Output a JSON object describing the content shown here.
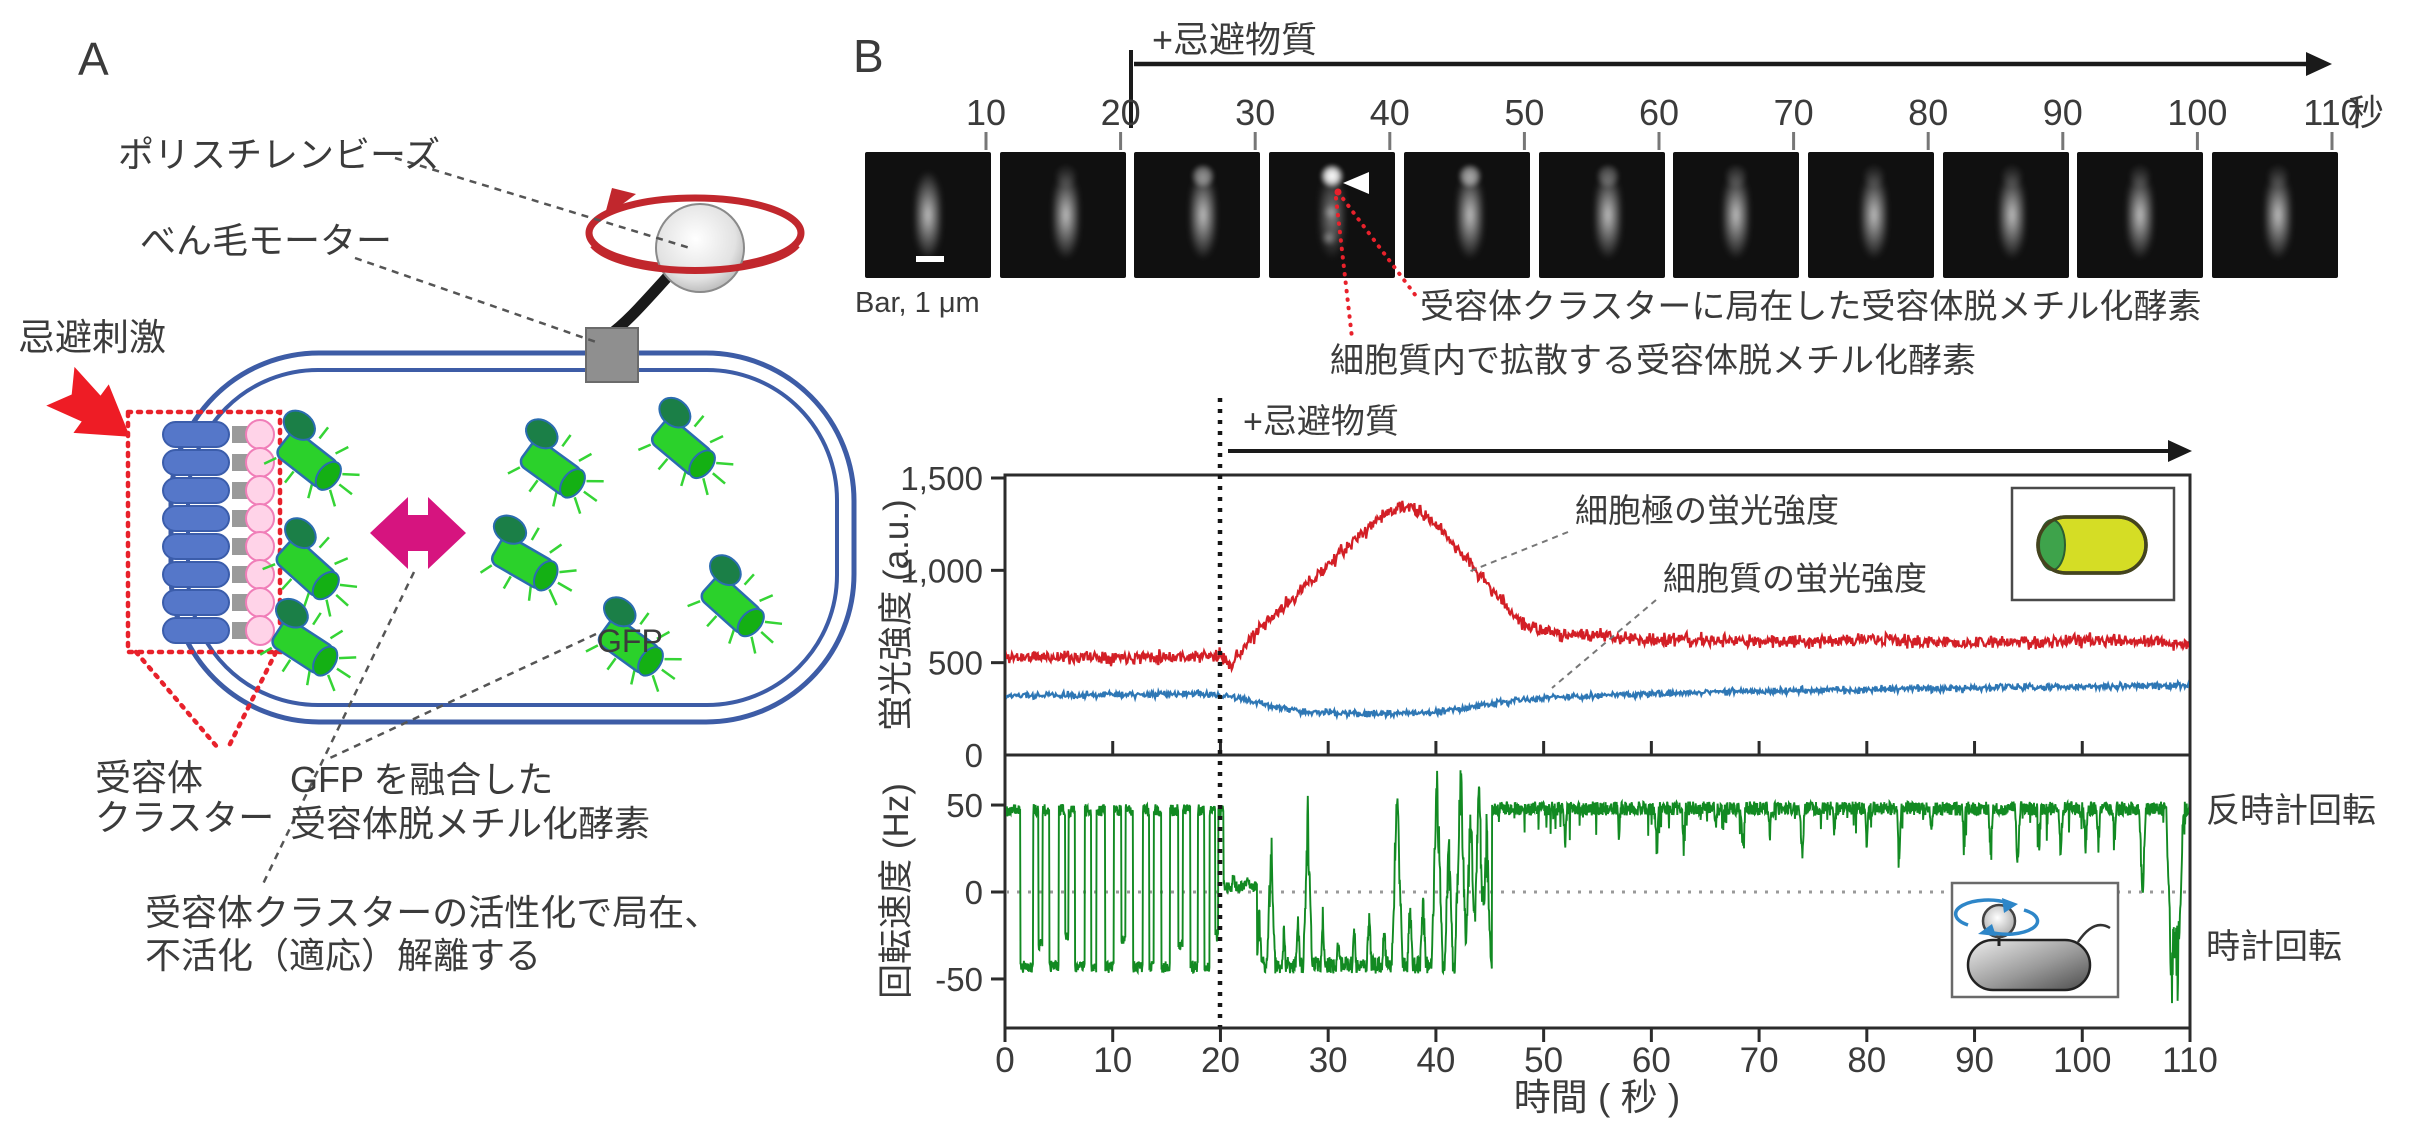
{
  "figure": {
    "panel_a_label": "A",
    "panel_b_label": "B"
  },
  "panel_a": {
    "bead_label": "ポリスチレンビーズ",
    "motor_label": "べん毛モーター",
    "stimulus_label": "忌避刺激",
    "receptor_cluster_label_line1": "受容体",
    "receptor_cluster_label_line2": "クラスター",
    "gfp_label": "GFP",
    "gfp_fusion_label_line1": "GFP を融合した",
    "gfp_fusion_label_line2": "受容体脱メチル化酵素",
    "caption_line1": "受容体クラスターの活性化で局在、",
    "caption_line2": "不活化（適応）解離する",
    "colors": {
      "membrane": "#3D5CA6",
      "receptor_blue": "#5577C9",
      "linker_gray": "#9a9a9a",
      "adaptor_pink": "#FFD3E8",
      "enzyme_body_green": "#2BD12B",
      "enzyme_head_green": "#1B7F47",
      "magenta_arrow": "#D6147F",
      "stimulus_red": "#EE1C25",
      "rotation_red": "#C1272D"
    }
  },
  "panel_b": {
    "strip": {
      "stimulus_label": "+忌避物質",
      "time_tick_labels": [
        "10",
        "20",
        "30",
        "40",
        "50",
        "60",
        "70",
        "80",
        "90",
        "100",
        "110"
      ],
      "time_unit": "秒",
      "scalebar_label": "Bar, 1 μm",
      "annotation_localized": "受容体クラスターに局在した受容体脱メチル化酵素",
      "annotation_diffuse": "細胞質内で拡散する受容体脱メチル化酵素",
      "frames": [
        {
          "t": 10,
          "pole_spot": 0,
          "scalebar": true
        },
        {
          "t": 20,
          "pole_spot": 0.1
        },
        {
          "t": 30,
          "pole_spot": 0.5
        },
        {
          "t": 40,
          "pole_spot": 1.0,
          "arrowhead": true,
          "diffuse_spots": true
        },
        {
          "t": 50,
          "pole_spot": 0.6
        },
        {
          "t": 60,
          "pole_spot": 0.3
        },
        {
          "t": 70,
          "pole_spot": 0.15
        },
        {
          "t": 80,
          "pole_spot": 0.1
        },
        {
          "t": 90,
          "pole_spot": 0.1
        },
        {
          "t": 100,
          "pole_spot": 0.1
        },
        {
          "t": 110,
          "pole_spot": 0.1
        }
      ]
    }
  },
  "chart_data": [
    {
      "type": "line",
      "title": "",
      "ylabel": "蛍光強度 (a.u.)",
      "xlabel": "",
      "xlim": [
        0,
        110
      ],
      "ylim": [
        0,
        1650
      ],
      "yticks": [
        0,
        500,
        1000,
        1500
      ],
      "ytick_labels": [
        "0",
        "500",
        "1,000",
        "1,500"
      ],
      "grid": false,
      "legend_position": "in-plot labels",
      "annotations": {
        "stimulus_label": "+忌避物質",
        "stimulus_start_s": 20,
        "pole_series_label": "細胞極の蛍光強度",
        "cyto_series_label": "細胞質の蛍光強度"
      },
      "series": [
        {
          "name": "細胞極の蛍光強度",
          "color": "#D31F26",
          "noise": 33,
          "keyframes": [
            [
              0,
              530
            ],
            [
              20,
              535
            ],
            [
              21,
              495
            ],
            [
              23,
              640
            ],
            [
              26,
              810
            ],
            [
              30,
              1030
            ],
            [
              33,
              1190
            ],
            [
              35,
              1300
            ],
            [
              37,
              1345
            ],
            [
              38,
              1330
            ],
            [
              40,
              1250
            ],
            [
              42,
              1120
            ],
            [
              44,
              980
            ],
            [
              46,
              840
            ],
            [
              48,
              715
            ],
            [
              50,
              665
            ],
            [
              55,
              645
            ],
            [
              60,
              625
            ],
            [
              70,
              615
            ],
            [
              80,
              625
            ],
            [
              90,
              605
            ],
            [
              100,
              620
            ],
            [
              110,
              605
            ]
          ]
        },
        {
          "name": "細胞質の蛍光強度",
          "color": "#2E77B5",
          "noise": 16,
          "keyframes": [
            [
              0,
              320
            ],
            [
              18,
              332
            ],
            [
              22,
              305
            ],
            [
              25,
              258
            ],
            [
              28,
              235
            ],
            [
              32,
              224
            ],
            [
              36,
              222
            ],
            [
              40,
              232
            ],
            [
              43,
              258
            ],
            [
              46,
              288
            ],
            [
              50,
              308
            ],
            [
              55,
              322
            ],
            [
              60,
              332
            ],
            [
              70,
              346
            ],
            [
              80,
              354
            ],
            [
              90,
              362
            ],
            [
              100,
              370
            ],
            [
              110,
              376
            ]
          ]
        }
      ]
    },
    {
      "type": "line",
      "title": "",
      "ylabel": "回転速度 (Hz)",
      "xlabel": "時間 ( 秒 )",
      "xlim": [
        0,
        110
      ],
      "ylim": [
        -78,
        84
      ],
      "yticks": [
        -50,
        0,
        50
      ],
      "ytick_labels": [
        "-50",
        "0",
        "50"
      ],
      "xticks": [
        0,
        10,
        20,
        30,
        40,
        50,
        60,
        70,
        80,
        90,
        100,
        110
      ],
      "xtick_labels": [
        "0",
        "10",
        "20",
        "30",
        "40",
        "50",
        "60",
        "70",
        "80",
        "90",
        "100",
        "110"
      ],
      "zero_line": "dotted",
      "ccw_label": "反時計回転",
      "cw_label": "時計回転",
      "series": [
        {
          "name": "回転速度",
          "color": "#128A22",
          "segments": [
            {
              "t": [
                0,
                20.3
              ],
              "mode": "telegraph",
              "high": 47,
              "noise": 3.5,
              "dips": [
                [
                  1.4,
                  2.6,
                  -43
                ],
                [
                  3.1,
                  3.5,
                  -30
                ],
                [
                  4.1,
                  5.0,
                  -43
                ],
                [
                  5.6,
                  5.9,
                  -25
                ],
                [
                  6.5,
                  7.4,
                  -43
                ],
                [
                  8.0,
                  8.5,
                  -43
                ],
                [
                  9.3,
                  10.1,
                  -43
                ],
                [
                  10.8,
                  11.2,
                  -28
                ],
                [
                  11.9,
                  12.8,
                  -43
                ],
                [
                  13.4,
                  13.8,
                  -43
                ],
                [
                  14.5,
                  15.3,
                  -43
                ],
                [
                  16.1,
                  16.5,
                  -30
                ],
                [
                  17.2,
                  17.9,
                  -43
                ],
                [
                  18.5,
                  19.0,
                  -43
                ],
                [
                  19.5,
                  19.8,
                  -25
                ]
              ]
            },
            {
              "t": [
                20.3,
                23.4
              ],
              "mode": "flat",
              "mean": 3,
              "noise": 3,
              "spikes": [
                [
                  21.2,
                  10
                ],
                [
                  22.5,
                  8
                ]
              ]
            },
            {
              "t": [
                23.4,
                45.2
              ],
              "mode": "flat",
              "mean": -42,
              "noise": 5,
              "spikes": [
                [
                  23.6,
                  30
                ],
                [
                  24.7,
                  68
                ],
                [
                  25.9,
                  20
                ],
                [
                  27.2,
                  25
                ],
                [
                  28.1,
                  80
                ],
                [
                  29.5,
                  25
                ],
                [
                  30.9,
                  15
                ],
                [
                  32.4,
                  20
                ],
                [
                  33.8,
                  30
                ],
                [
                  35.2,
                  25
                ],
                [
                  36.4,
                  100
                ],
                [
                  37.6,
                  35
                ],
                [
                  38.8,
                  40
                ],
                [
                  40.1,
                  105
                ],
                [
                  41.2,
                  70
                ],
                [
                  42.3,
                  108
                ],
                [
                  43.2,
                  88
                ],
                [
                  44.0,
                  100
                ],
                [
                  44.7,
                  75
                ]
              ]
            },
            {
              "t": [
                45.2,
                110
              ],
              "mode": "flat",
              "mean": 48,
              "noise": 4,
              "down_spike_rate": 0.05,
              "down_spike_max": 16,
              "spikes": [
                [
                  52,
                  -22
                ],
                [
                  57,
                  -16
                ],
                [
                  60.5,
                  -28
                ],
                [
                  63,
                  -20
                ],
                [
                  66,
                  -14
                ],
                [
                  68.5,
                  -26
                ],
                [
                  71,
                  -18
                ],
                [
                  74,
                  -30
                ],
                [
                  77,
                  -16
                ],
                [
                  80,
                  -22
                ],
                [
                  83,
                  -28
                ],
                [
                  86,
                  -14
                ],
                [
                  89,
                  -20
                ],
                [
                  91.5,
                  -26
                ],
                [
                  94,
                  -32
                ],
                [
                  96,
                  -20
                ],
                [
                  98,
                  -28
                ],
                [
                  100.3,
                  -24
                ],
                [
                  101.5,
                  -22
                ],
                [
                  103,
                  -18
                ],
                [
                  105.6,
                  -51
                ],
                [
                  108.3,
                  -103
                ],
                [
                  108.9,
                  -95
                ]
              ]
            }
          ]
        }
      ]
    }
  ]
}
